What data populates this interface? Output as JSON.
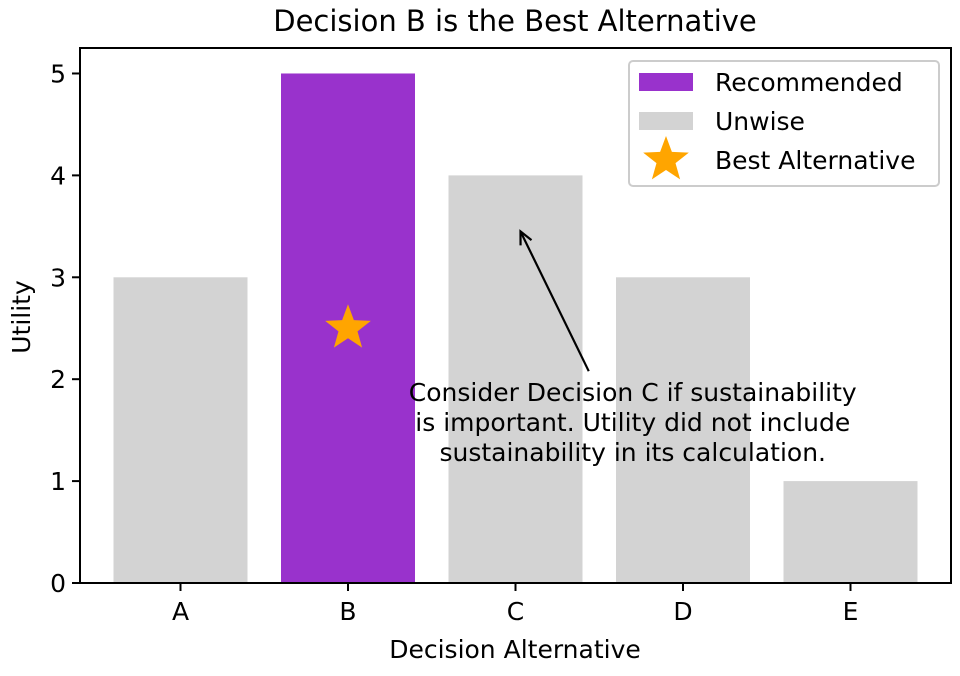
{
  "chart_data": {
    "type": "bar",
    "title": "Decision B is the Best Alternative",
    "xlabel": "Decision Alternative",
    "ylabel": "Utility",
    "categories": [
      "A",
      "B",
      "C",
      "D",
      "E"
    ],
    "values": [
      3,
      5,
      4,
      3,
      1
    ],
    "ylim": [
      0,
      5.25
    ],
    "yticks": [
      "0",
      "1",
      "2",
      "3",
      "4",
      "5"
    ],
    "grid": false,
    "colors": {
      "recommended": "#9932CC",
      "unwise": "#D3D3D3",
      "star": "#FFA500",
      "axis": "#000000"
    },
    "bar_groups": [
      "unwise",
      "recommended",
      "unwise",
      "unwise",
      "unwise"
    ],
    "star_marker": {
      "category": "B",
      "y": 2.5
    },
    "legend": {
      "position": "top-right",
      "entries": [
        {
          "key": "recommended",
          "label": "Recommended",
          "marker": "bar"
        },
        {
          "key": "unwise",
          "label": "Unwise",
          "marker": "bar"
        },
        {
          "key": "star",
          "label": "Best Alternative",
          "marker": "star-icon"
        }
      ]
    },
    "annotation": {
      "lines": [
        "Consider Decision C if sustainability",
        "is important.  Utility did not include",
        "sustainability in its calculation."
      ],
      "arrow_to": {
        "category": "C",
        "y": 3.45
      },
      "text_anchor": {
        "x_category_offset": 2.7,
        "y": 2.0
      }
    }
  }
}
